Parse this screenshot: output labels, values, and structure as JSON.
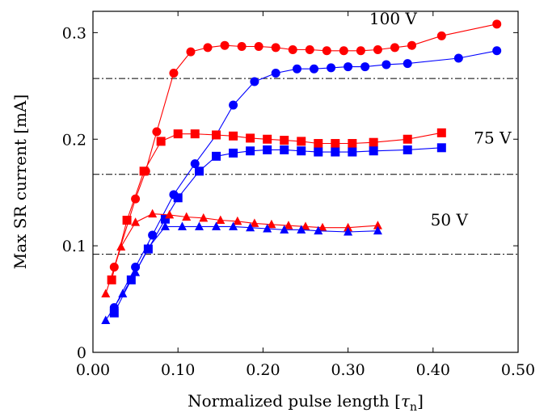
{
  "chart_data": {
    "type": "line",
    "title": "",
    "xlabel": "Normalized pulse length [τn]",
    "xlabel_main": "Normalized pulse length [",
    "xlabel_tau": "τ",
    "xlabel_sub": "n",
    "xlabel_close": "]",
    "ylabel": "Max SR current [mA]",
    "xlim": [
      0,
      0.5
    ],
    "ylim": [
      0,
      0.32
    ],
    "xticks": [
      0,
      0.1,
      0.2,
      0.3,
      0.4,
      0.5
    ],
    "xtick_labels": [
      "0.00",
      "0.10",
      "0.20",
      "0.30",
      "0.40",
      "0.50"
    ],
    "yticks": [
      0,
      0.1,
      0.2,
      0.3
    ],
    "ytick_labels": [
      "0",
      "0.1",
      "0.2",
      "0.3"
    ],
    "grid": false,
    "reference_lines": [
      {
        "y": 0.257
      },
      {
        "y": 0.167
      },
      {
        "y": 0.092
      }
    ],
    "annotations": [
      {
        "text": "100 V",
        "x": 0.325,
        "y": 0.308
      },
      {
        "text": "75 V",
        "x": 0.448,
        "y": 0.196
      },
      {
        "text": "50 V",
        "x": 0.397,
        "y": 0.119
      }
    ],
    "series": [
      {
        "color": "#ff0000",
        "marker": "circle",
        "x": [
          0.025,
          0.05,
          0.062,
          0.075,
          0.095,
          0.115,
          0.135,
          0.155,
          0.175,
          0.195,
          0.215,
          0.235,
          0.255,
          0.275,
          0.295,
          0.315,
          0.335,
          0.355,
          0.375,
          0.41,
          0.475
        ],
        "y": [
          0.08,
          0.144,
          0.17,
          0.207,
          0.262,
          0.282,
          0.286,
          0.288,
          0.287,
          0.287,
          0.286,
          0.284,
          0.284,
          0.283,
          0.283,
          0.283,
          0.284,
          0.286,
          0.288,
          0.297,
          0.308
        ]
      },
      {
        "color": "#0000ff",
        "marker": "circle",
        "x": [
          0.025,
          0.05,
          0.07,
          0.095,
          0.12,
          0.145,
          0.165,
          0.19,
          0.215,
          0.24,
          0.26,
          0.28,
          0.3,
          0.32,
          0.345,
          0.37,
          0.43,
          0.475
        ],
        "y": [
          0.042,
          0.08,
          0.11,
          0.148,
          0.177,
          0.204,
          0.232,
          0.254,
          0.262,
          0.266,
          0.266,
          0.267,
          0.268,
          0.268,
          0.27,
          0.271,
          0.276,
          0.283
        ]
      },
      {
        "color": "#ff0000",
        "marker": "square",
        "x": [
          0.022,
          0.04,
          0.06,
          0.08,
          0.1,
          0.12,
          0.145,
          0.165,
          0.185,
          0.205,
          0.225,
          0.245,
          0.265,
          0.285,
          0.305,
          0.33,
          0.37,
          0.41
        ],
        "y": [
          0.068,
          0.124,
          0.17,
          0.198,
          0.205,
          0.205,
          0.204,
          0.203,
          0.201,
          0.2,
          0.199,
          0.198,
          0.196,
          0.196,
          0.196,
          0.197,
          0.2,
          0.206
        ]
      },
      {
        "color": "#0000ff",
        "marker": "square",
        "x": [
          0.025,
          0.045,
          0.065,
          0.085,
          0.1,
          0.125,
          0.145,
          0.165,
          0.185,
          0.205,
          0.225,
          0.245,
          0.265,
          0.285,
          0.305,
          0.33,
          0.37,
          0.41
        ],
        "y": [
          0.037,
          0.068,
          0.097,
          0.125,
          0.145,
          0.17,
          0.184,
          0.187,
          0.189,
          0.19,
          0.19,
          0.189,
          0.188,
          0.188,
          0.188,
          0.189,
          0.19,
          0.192
        ]
      },
      {
        "color": "#ff0000",
        "marker": "triangle",
        "x": [
          0.015,
          0.033,
          0.05,
          0.07,
          0.09,
          0.11,
          0.13,
          0.15,
          0.17,
          0.19,
          0.21,
          0.23,
          0.25,
          0.27,
          0.3,
          0.335
        ],
        "y": [
          0.055,
          0.099,
          0.122,
          0.13,
          0.129,
          0.127,
          0.126,
          0.124,
          0.123,
          0.121,
          0.12,
          0.119,
          0.118,
          0.117,
          0.117,
          0.119
        ]
      },
      {
        "color": "#0000ff",
        "marker": "triangle",
        "x": [
          0.015,
          0.035,
          0.05,
          0.065,
          0.085,
          0.105,
          0.125,
          0.145,
          0.165,
          0.185,
          0.205,
          0.225,
          0.245,
          0.265,
          0.3,
          0.335
        ],
        "y": [
          0.03,
          0.055,
          0.075,
          0.098,
          0.118,
          0.118,
          0.118,
          0.118,
          0.118,
          0.117,
          0.116,
          0.115,
          0.115,
          0.114,
          0.113,
          0.114
        ]
      }
    ]
  }
}
